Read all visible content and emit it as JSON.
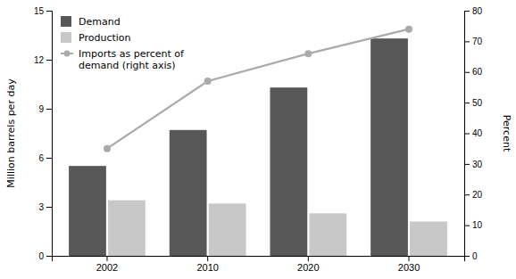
{
  "chart_data": {
    "type": "bar",
    "categories": [
      "2002",
      "2010",
      "2020",
      "2030"
    ],
    "series": [
      {
        "name": "Demand",
        "color": "#585858",
        "values": [
          5.5,
          7.7,
          10.3,
          13.3
        ]
      },
      {
        "name": "Production",
        "color": "#c8c8c8",
        "values": [
          3.4,
          3.2,
          2.6,
          2.1
        ]
      },
      {
        "name": "Imports as percent of\ndemand (right axis)",
        "type": "line",
        "axis": "y2",
        "color": "#aaaaaa",
        "marker": "circle",
        "values": [
          35,
          57,
          66,
          74
        ]
      }
    ],
    "ylabel": "Million barrels per day",
    "y2label": "Percent",
    "ylim": [
      0,
      15
    ],
    "yticks": [
      0,
      3,
      6,
      9,
      12,
      15
    ],
    "y2lim": [
      0,
      80
    ],
    "y2ticks": [
      0,
      10,
      20,
      30,
      40,
      50,
      60,
      70,
      80
    ],
    "legend": "upper left",
    "grid": false
  }
}
